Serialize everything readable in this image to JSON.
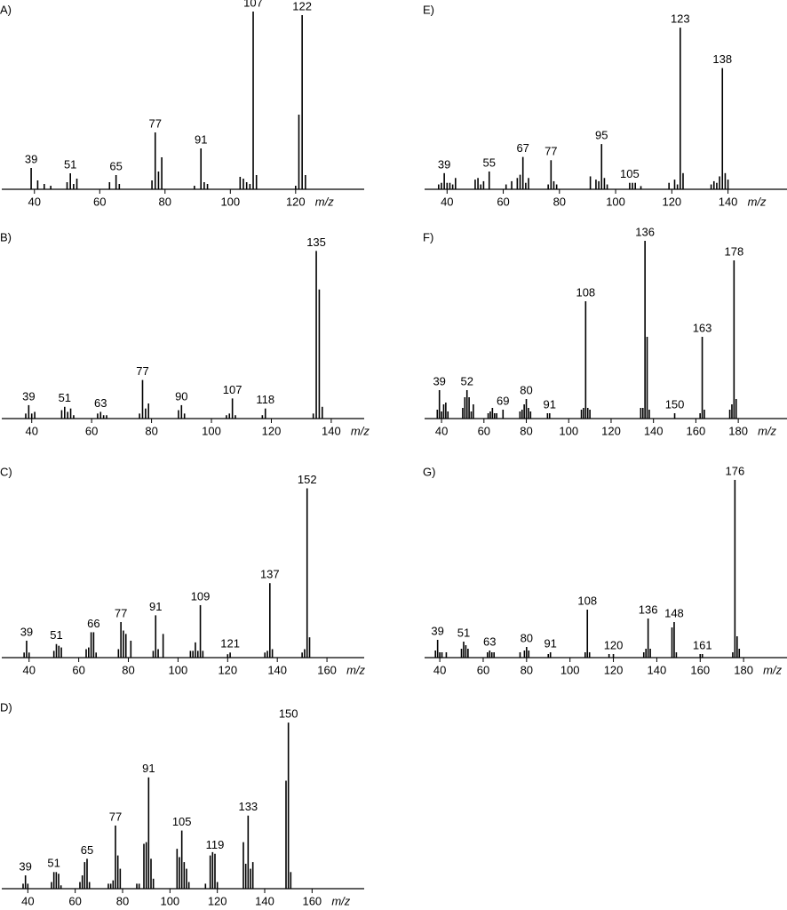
{
  "chart_data": [
    {
      "type": "bar",
      "label": "A)",
      "xlabel": "m/z",
      "color": "#000000",
      "x": [
        39,
        41,
        43,
        45,
        50,
        51,
        52,
        53,
        63,
        65,
        66,
        76,
        77,
        78,
        79,
        89,
        91,
        92,
        93,
        103,
        104,
        105,
        106,
        107,
        108,
        120,
        121,
        122,
        123
      ],
      "values": [
        12,
        5,
        3,
        2,
        4,
        9,
        3,
        6,
        4,
        8,
        3,
        5,
        32,
        10,
        18,
        2,
        23,
        4,
        3,
        7,
        6,
        4,
        3,
        100,
        8,
        2,
        42,
        98,
        8
      ],
      "peak_labels": [
        39,
        51,
        65,
        77,
        91,
        107,
        122
      ],
      "xlim": [
        30,
        141
      ],
      "xticks": [
        40,
        60,
        80,
        100,
        120
      ],
      "ylim": [
        0,
        100
      ]
    },
    {
      "type": "bar",
      "label": "B)",
      "xlabel": "m/z",
      "color": "#000000",
      "x": [
        38,
        39,
        40,
        41,
        50,
        51,
        52,
        53,
        54,
        62,
        63,
        64,
        65,
        76,
        77,
        78,
        79,
        89,
        90,
        91,
        105,
        106,
        107,
        108,
        117,
        118,
        134,
        135,
        136,
        137
      ],
      "values": [
        3,
        8,
        3,
        4,
        5,
        7,
        4,
        6,
        2,
        3,
        4,
        2,
        2,
        3,
        23,
        6,
        9,
        5,
        8,
        3,
        2,
        3,
        12,
        2,
        2,
        6,
        3,
        100,
        77,
        7
      ],
      "peak_labels": [
        39,
        51,
        63,
        77,
        90,
        107,
        118,
        135
      ],
      "xlim": [
        30,
        151
      ],
      "xticks": [
        40,
        60,
        80,
        100,
        120,
        140
      ],
      "ylim": [
        0,
        106
      ]
    },
    {
      "type": "bar",
      "label": "C)",
      "xlabel": "m/z",
      "color": "#000000",
      "x": [
        38,
        39,
        40,
        50,
        51,
        52,
        53,
        63,
        64,
        65,
        66,
        67,
        76,
        77,
        78,
        79,
        81,
        90,
        91,
        92,
        94,
        105,
        106,
        107,
        108,
        109,
        110,
        120,
        121,
        135,
        136,
        137,
        138,
        150,
        151,
        152,
        153
      ],
      "values": [
        3,
        10,
        3,
        4,
        8,
        7,
        6,
        5,
        6,
        15,
        15,
        3,
        5,
        21,
        16,
        14,
        10,
        4,
        25,
        5,
        14,
        4,
        4,
        9,
        4,
        31,
        4,
        2,
        3,
        3,
        4,
        44,
        5,
        3,
        5,
        100,
        12
      ],
      "peak_labels": [
        39,
        51,
        66,
        77,
        91,
        109,
        121,
        137,
        152
      ],
      "xlim": [
        29,
        175
      ],
      "xticks": [
        40,
        60,
        80,
        100,
        120,
        140,
        160
      ],
      "ylim": [
        0,
        105
      ]
    },
    {
      "type": "bar",
      "label": "D)",
      "xlabel": "m/z",
      "color": "#000000",
      "x": [
        38,
        39,
        40,
        50,
        51,
        52,
        53,
        54,
        62,
        63,
        64,
        65,
        66,
        74,
        75,
        76,
        77,
        78,
        79,
        86,
        87,
        89,
        90,
        91,
        92,
        93,
        103,
        104,
        105,
        106,
        107,
        108,
        115,
        117,
        118,
        119,
        120,
        131,
        132,
        133,
        134,
        135,
        149,
        150,
        151
      ],
      "values": [
        3,
        8,
        3,
        4,
        10,
        10,
        9,
        2,
        4,
        8,
        16,
        18,
        4,
        3,
        3,
        5,
        38,
        20,
        12,
        3,
        3,
        27,
        28,
        67,
        18,
        6,
        24,
        19,
        35,
        16,
        12,
        4,
        3,
        20,
        22,
        21,
        4,
        28,
        15,
        44,
        12,
        16,
        65,
        100,
        10
      ],
      "peak_labels": [
        39,
        51,
        65,
        77,
        91,
        105,
        119,
        133,
        150
      ],
      "xlim": [
        29,
        182
      ],
      "xticks": [
        40,
        60,
        80,
        100,
        120,
        140,
        160
      ],
      "ylim": [
        0,
        107
      ]
    },
    {
      "type": "bar",
      "label": "E)",
      "xlabel": "m/z",
      "color": "#000000",
      "x": [
        37,
        38,
        39,
        40,
        41,
        42,
        43,
        50,
        51,
        52,
        53,
        55,
        61,
        63,
        65,
        66,
        67,
        68,
        69,
        76,
        77,
        78,
        79,
        91,
        93,
        94,
        95,
        96,
        97,
        105,
        106,
        107,
        109,
        119,
        121,
        122,
        123,
        124,
        134,
        135,
        136,
        137,
        138,
        139,
        140
      ],
      "values": [
        3,
        4,
        10,
        4,
        4,
        3,
        7,
        6,
        7,
        3,
        5,
        11,
        3,
        5,
        7,
        9,
        20,
        4,
        7,
        3,
        18,
        5,
        3,
        8,
        6,
        5,
        28,
        7,
        3,
        4,
        4,
        4,
        2,
        4,
        6,
        3,
        100,
        10,
        3,
        5,
        4,
        8,
        75,
        10,
        6
      ],
      "peak_labels": [
        39,
        55,
        67,
        77,
        95,
        105,
        123,
        138
      ],
      "xlim": [
        32,
        161
      ],
      "xticks": [
        40,
        60,
        80,
        100,
        120,
        140
      ],
      "ylim": [
        0,
        110
      ]
    },
    {
      "type": "bar",
      "label": "F)",
      "xlabel": "m/z",
      "color": "#000000",
      "x": [
        38,
        39,
        40,
        41,
        42,
        43,
        50,
        51,
        52,
        53,
        54,
        55,
        62,
        63,
        64,
        65,
        66,
        69,
        77,
        78,
        79,
        80,
        81,
        82,
        90,
        91,
        106,
        107,
        108,
        109,
        110,
        134,
        135,
        136,
        137,
        138,
        150,
        162,
        163,
        164,
        176,
        177,
        178,
        179
      ],
      "values": [
        5,
        16,
        4,
        8,
        9,
        4,
        6,
        12,
        16,
        12,
        4,
        8,
        3,
        4,
        6,
        3,
        3,
        5,
        4,
        5,
        8,
        11,
        6,
        4,
        3,
        3,
        5,
        6,
        66,
        6,
        5,
        6,
        6,
        100,
        46,
        5,
        3,
        3,
        46,
        5,
        5,
        8,
        89,
        11
      ],
      "peak_labels": [
        39,
        52,
        69,
        80,
        91,
        108,
        136,
        150,
        163,
        178
      ],
      "xlim": [
        32,
        203
      ],
      "xticks": [
        40,
        60,
        80,
        100,
        120,
        140,
        160,
        180
      ],
      "ylim": [
        0,
        100
      ]
    },
    {
      "type": "bar",
      "label": "G)",
      "xlabel": "m/z",
      "color": "#000000",
      "x": [
        38,
        39,
        40,
        41,
        43,
        50,
        51,
        52,
        53,
        62,
        63,
        64,
        65,
        77,
        79,
        80,
        81,
        90,
        91,
        107,
        108,
        109,
        118,
        120,
        134,
        135,
        136,
        137,
        147,
        148,
        149,
        160,
        161,
        175,
        176,
        177,
        178
      ],
      "values": [
        4,
        10,
        3,
        3,
        3,
        5,
        9,
        7,
        5,
        3,
        4,
        3,
        3,
        3,
        4,
        6,
        4,
        2,
        3,
        3,
        27,
        3,
        2,
        2,
        3,
        5,
        22,
        5,
        17,
        20,
        3,
        2,
        2,
        3,
        100,
        12,
        5
      ],
      "peak_labels": [
        39,
        51,
        63,
        80,
        91,
        108,
        120,
        136,
        148,
        161,
        176
      ],
      "xlim": [
        33,
        200
      ],
      "xticks": [
        40,
        60,
        80,
        100,
        120,
        140,
        160,
        180
      ],
      "ylim": [
        0,
        100
      ]
    }
  ]
}
